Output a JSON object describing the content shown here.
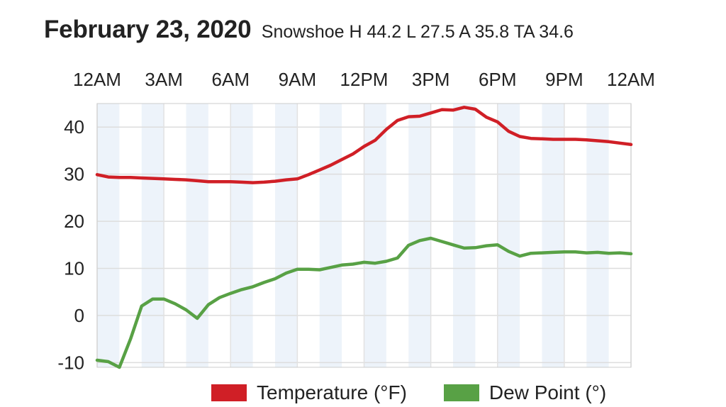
{
  "header": {
    "date": "February 23, 2020",
    "summary": "Snowshoe H 44.2 L 27.5 A 35.8 TA 34.6"
  },
  "chart_data": {
    "type": "line",
    "title": "February 23, 2020",
    "subtitle": "Snowshoe H 44.2 L 27.5 A 35.8 TA 34.6",
    "x_unit": "hours since midnight",
    "xlim": [
      0,
      24
    ],
    "ylim": [
      -11,
      45
    ],
    "x_ticks": [
      {
        "label": "12AM",
        "value": 0
      },
      {
        "label": "3AM",
        "value": 3
      },
      {
        "label": "6AM",
        "value": 6
      },
      {
        "label": "9AM",
        "value": 9
      },
      {
        "label": "12PM",
        "value": 12
      },
      {
        "label": "3PM",
        "value": 15
      },
      {
        "label": "6PM",
        "value": 18
      },
      {
        "label": "9PM",
        "value": 21
      },
      {
        "label": "12AM",
        "value": 24
      }
    ],
    "y_ticks": [
      {
        "label": "40",
        "value": 40
      },
      {
        "label": "30",
        "value": 30
      },
      {
        "label": "20",
        "value": 20
      },
      {
        "label": "10",
        "value": 10
      },
      {
        "label": "0",
        "value": 0
      },
      {
        "label": "-10",
        "value": -10
      }
    ],
    "grid": true,
    "legend_position": "bottom-right",
    "series": [
      {
        "name": "Temperature (°F)",
        "color": "#d01f26",
        "x": [
          0,
          0.5,
          1,
          1.5,
          2,
          2.5,
          3,
          3.5,
          4,
          4.5,
          5,
          5.5,
          6,
          6.5,
          7,
          7.5,
          8,
          8.5,
          9,
          9.5,
          10,
          10.5,
          11,
          11.5,
          12,
          12.5,
          13,
          13.5,
          14,
          14.5,
          15,
          15.5,
          16,
          16.5,
          17,
          17.5,
          18,
          18.5,
          19,
          19.5,
          20,
          20.5,
          21,
          21.5,
          22,
          22.5,
          23,
          23.5,
          24
        ],
        "values": [
          29.9,
          29.4,
          29.3,
          29.3,
          29.2,
          29.1,
          29.0,
          28.9,
          28.8,
          28.6,
          28.4,
          28.4,
          28.4,
          28.3,
          28.2,
          28.3,
          28.5,
          28.8,
          29.0,
          29.9,
          30.9,
          31.9,
          33.1,
          34.3,
          35.9,
          37.2,
          39.5,
          41.4,
          42.2,
          42.3,
          43.0,
          43.7,
          43.6,
          44.2,
          43.8,
          42.1,
          41.1,
          39.1,
          38.0,
          37.6,
          37.5,
          37.4,
          37.4,
          37.4,
          37.3,
          37.1,
          36.9,
          36.6,
          36.3
        ]
      },
      {
        "name": "Dew Point (°)",
        "color": "#58a145",
        "x": [
          0,
          0.5,
          1,
          1.5,
          2,
          2.5,
          3,
          3.5,
          4,
          4.5,
          5,
          5.5,
          6,
          6.5,
          7,
          7.5,
          8,
          8.5,
          9,
          9.5,
          10,
          10.5,
          11,
          11.5,
          12,
          12.5,
          13,
          13.5,
          14,
          14.5,
          15,
          15.5,
          16,
          16.5,
          17,
          17.5,
          18,
          18.5,
          19,
          19.5,
          20,
          20.5,
          21,
          21.5,
          22,
          22.5,
          23,
          23.5,
          24
        ],
        "values": [
          -9.5,
          -9.8,
          -11.0,
          -5.0,
          2.0,
          3.5,
          3.5,
          2.5,
          1.2,
          -0.6,
          2.3,
          3.8,
          4.7,
          5.5,
          6.1,
          7.0,
          7.8,
          9.0,
          9.8,
          9.8,
          9.7,
          10.2,
          10.7,
          10.9,
          11.3,
          11.1,
          11.5,
          12.2,
          14.9,
          15.9,
          16.4,
          15.7,
          15.0,
          14.3,
          14.4,
          14.8,
          15.0,
          13.6,
          12.6,
          13.2,
          13.3,
          13.4,
          13.5,
          13.5,
          13.3,
          13.4,
          13.2,
          13.3,
          13.1
        ]
      }
    ]
  }
}
